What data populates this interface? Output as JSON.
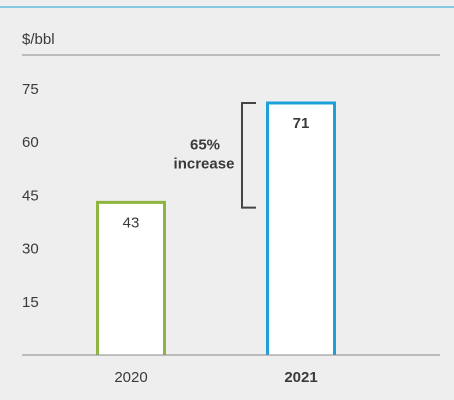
{
  "chart_data": {
    "type": "bar",
    "title": "",
    "unit_label": "$/bbl",
    "xlabel": "",
    "ylabel": "",
    "categories": [
      "2020",
      "2021"
    ],
    "values": [
      43,
      71
    ],
    "data_labels": [
      "43",
      "71"
    ],
    "ylim": [
      0,
      75
    ],
    "yticks": [
      15,
      30,
      45,
      60,
      75
    ],
    "grid": false,
    "bar_colors": [
      "#8db53f",
      "#1ba1d8"
    ],
    "bar_fill": "#ffffff",
    "background": "#eeeeee",
    "top_rule_color": "#1ba1d8",
    "emphasized_category": "2021",
    "annotation": {
      "line1": "65%",
      "line2": "increase",
      "from_value": 43,
      "to_value": 71
    }
  }
}
